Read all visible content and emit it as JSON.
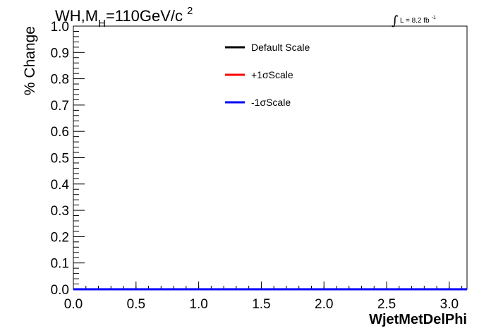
{
  "header": {
    "title_main": "WH,M",
    "title_sub": "H",
    "title_rest": "=110GeV/c",
    "title_sup": "2",
    "lumi_integral": "∫",
    "lumi_text": "L = 8.2 fb",
    "lumi_sup": "-1"
  },
  "chart_data": {
    "type": "line",
    "title": "WH,M_H=110GeV/c^2",
    "xlabel": "WjetMetDelPhi",
    "ylabel": "% Change",
    "xlim": [
      0.0,
      3.1416
    ],
    "ylim": [
      0.0,
      1.0
    ],
    "x_ticks": [
      "0.0",
      "0.5",
      "1.0",
      "1.5",
      "2.0",
      "2.5",
      "3.0"
    ],
    "y_ticks": [
      "0.0",
      "0.1",
      "0.2",
      "0.3",
      "0.4",
      "0.5",
      "0.6",
      "0.7",
      "0.8",
      "0.9",
      "1.0"
    ],
    "grid": false,
    "legend_position": "top-center",
    "series": [
      {
        "name": "Default Scale",
        "color": "#000000",
        "x": [
          0.0,
          3.1416
        ],
        "values": [
          0.0,
          0.0
        ]
      },
      {
        "name": "+1σScale",
        "color": "#ff0000",
        "x": [
          0.0,
          3.1416
        ],
        "values": [
          0.0,
          0.0
        ]
      },
      {
        "name": "-1σScale",
        "color": "#0000ff",
        "x": [
          0.0,
          3.1416
        ],
        "values": [
          0.0,
          0.0
        ]
      }
    ]
  }
}
